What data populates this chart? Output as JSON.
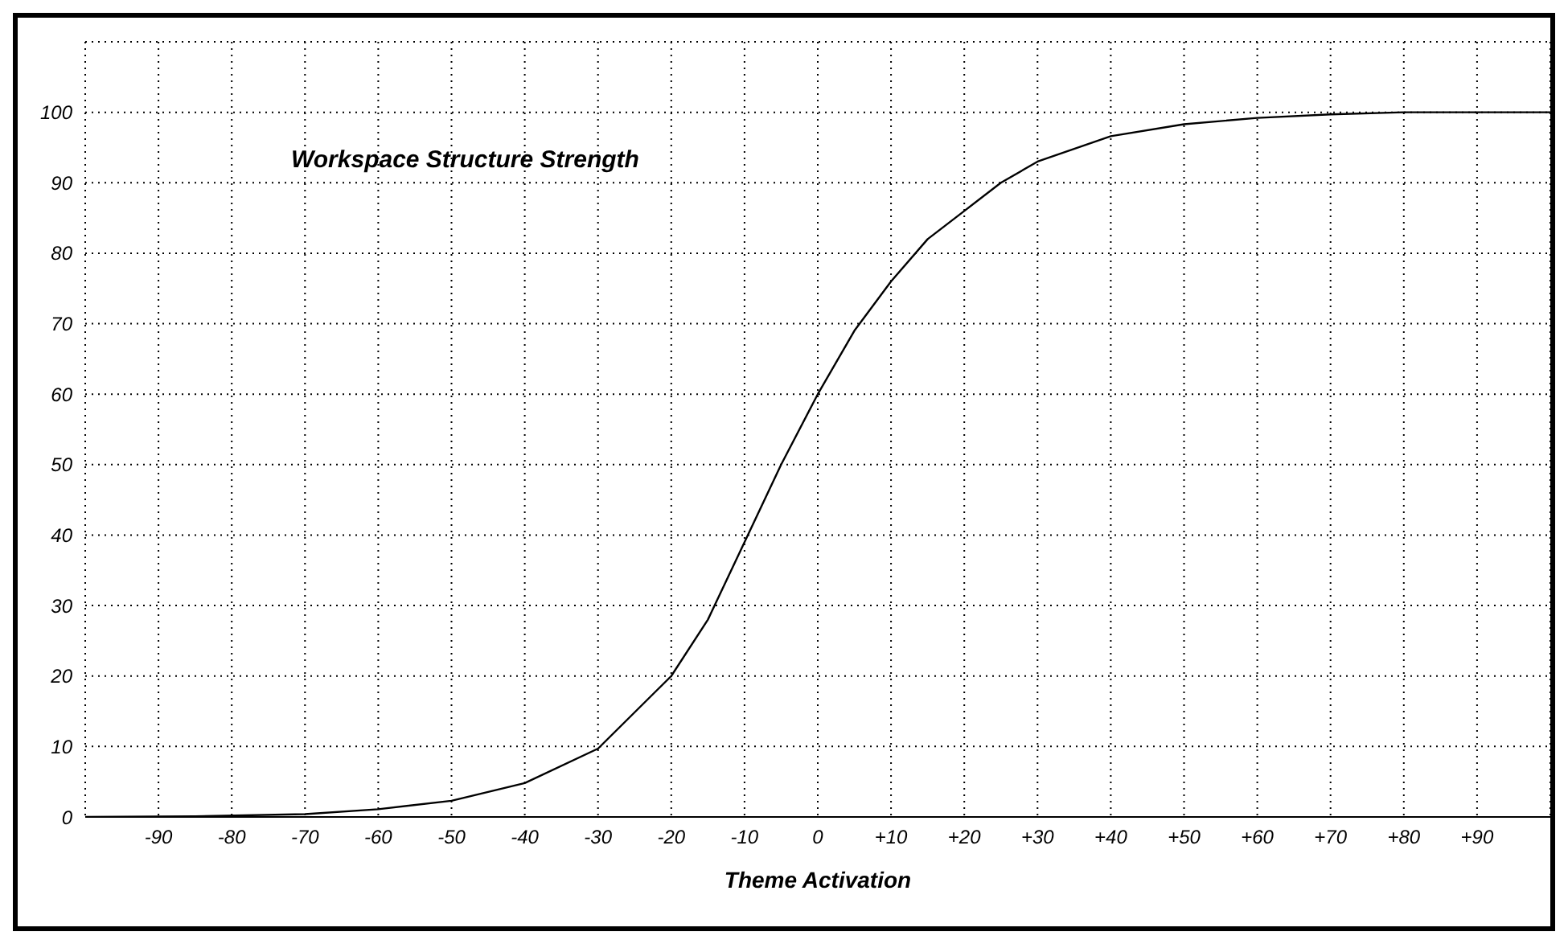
{
  "chart_data": {
    "type": "line",
    "title": "Workspace Structure Strength",
    "xlabel": "Theme Activation",
    "x": [
      -100,
      -85,
      -70,
      -60,
      -50,
      -40,
      -30,
      -20,
      -15,
      -10,
      -5,
      0,
      5,
      10,
      15,
      20,
      25,
      30,
      40,
      50,
      60,
      70,
      80,
      90,
      100
    ],
    "series": [
      {
        "color": "#000000",
        "values": [
          0,
          0.1,
          0.4,
          1.1,
          2.3,
          4.8,
          9.7,
          20,
          28,
          39,
          50,
          60,
          69,
          76,
          82,
          86,
          90,
          93,
          96.6,
          98.3,
          99.2,
          99.7,
          100,
          100,
          100
        ]
      }
    ],
    "xlim": [
      -100,
      100
    ],
    "ylim": [
      0,
      110
    ],
    "xticks": [
      -90,
      -80,
      -70,
      -60,
      -50,
      -40,
      -30,
      -20,
      -10,
      0,
      {
        "value": 10,
        "label": "+10"
      },
      {
        "value": 20,
        "label": "+20"
      },
      {
        "value": 30,
        "label": "+30"
      },
      {
        "value": 40,
        "label": "+40"
      },
      {
        "value": 50,
        "label": "+50"
      },
      {
        "value": 60,
        "label": "+60"
      },
      {
        "value": 70,
        "label": "+70"
      },
      {
        "value": 80,
        "label": "+80"
      },
      {
        "value": 90,
        "label": "+90"
      }
    ],
    "yticks": [
      0,
      10,
      20,
      30,
      40,
      50,
      60,
      70,
      80,
      90,
      100
    ],
    "grid": true,
    "legend": false,
    "marker": "none",
    "line_style": "solid"
  }
}
